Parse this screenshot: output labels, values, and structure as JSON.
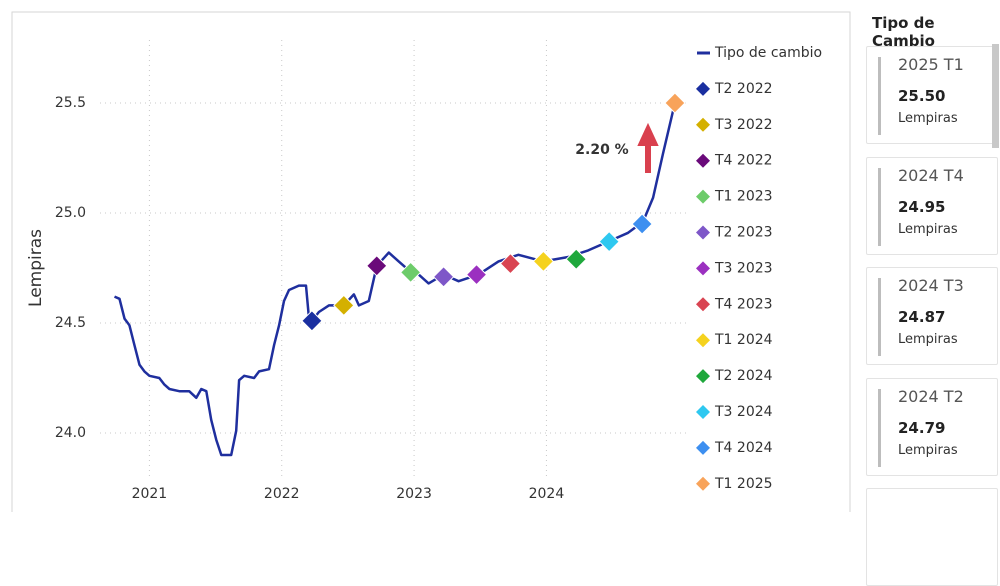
{
  "chart_data": {
    "type": "line",
    "ylabel": "Lempiras",
    "annotation": "2.20 %",
    "xlim": [
      2020.4,
      2025.1
    ],
    "xticks": [
      2021,
      2022,
      2023,
      2024
    ],
    "ylim": [
      23.7,
      25.8
    ],
    "yticks": [
      {
        "value": 24,
        "label": "24.0"
      },
      24.5,
      {
        "value": 25,
        "label": "25.0"
      },
      25.5
    ],
    "grid": true,
    "legend": "right",
    "series": [
      {
        "name": "Tipo de cambio",
        "color": "#1f2f9e",
        "kind": "line",
        "x": [
          2020.736,
          2020.774,
          2020.812,
          2020.849,
          2020.887,
          2020.925,
          2020.962,
          2021.0,
          2021.075,
          2021.113,
          2021.151,
          2021.226,
          2021.301,
          2021.354,
          2021.392,
          2021.43,
          2021.467,
          2021.505,
          2021.543,
          2021.618,
          2021.656,
          2021.678,
          2021.716,
          2021.791,
          2021.829,
          2021.904,
          2021.942,
          2021.98,
          2022.017,
          2022.055,
          2022.13,
          2022.183,
          2022.206,
          2022.228,
          2022.281,
          2022.356,
          2022.469,
          2022.545,
          2022.583,
          2022.658,
          2022.718,
          2022.809,
          2022.884,
          2022.959,
          2023.035,
          2023.11,
          2023.223,
          2023.336,
          2023.487,
          2023.638,
          2023.788,
          2023.977,
          2024.165,
          2024.316,
          2024.467,
          2024.617,
          2024.73,
          2024.806,
          2024.881,
          2024.971
        ],
        "values": [
          24.62,
          24.61,
          24.52,
          24.49,
          24.4,
          24.31,
          24.28,
          24.26,
          24.25,
          24.22,
          24.2,
          24.19,
          24.19,
          24.16,
          24.2,
          24.19,
          24.06,
          23.97,
          23.9,
          23.9,
          24.01,
          24.24,
          24.26,
          24.25,
          24.28,
          24.29,
          24.4,
          24.49,
          24.6,
          24.65,
          24.67,
          24.67,
          24.52,
          24.51,
          24.55,
          24.58,
          24.58,
          24.63,
          24.58,
          24.6,
          24.76,
          24.82,
          24.78,
          24.74,
          24.72,
          24.68,
          24.72,
          24.69,
          24.72,
          24.78,
          24.81,
          24.78,
          24.8,
          24.83,
          24.87,
          24.91,
          24.96,
          25.07,
          25.27,
          25.5
        ]
      },
      {
        "name": "T2 2022",
        "color": "#1a2fa0",
        "kind": "marker",
        "x": [
          2022.228
        ],
        "values": [
          24.51
        ]
      },
      {
        "name": "T3 2022",
        "color": "#d4b000",
        "kind": "marker",
        "x": [
          2022.469
        ],
        "values": [
          24.58
        ]
      },
      {
        "name": "T4 2022",
        "color": "#6a0a7a",
        "kind": "marker",
        "x": [
          2022.718
        ],
        "values": [
          24.76
        ]
      },
      {
        "name": "T1 2023",
        "color": "#6dcc6a",
        "kind": "marker",
        "x": [
          2022.974
        ],
        "values": [
          24.73
        ]
      },
      {
        "name": "T2 2023",
        "color": "#7e57c8",
        "kind": "marker",
        "x": [
          2023.223
        ],
        "values": [
          24.71
        ]
      },
      {
        "name": "T3 2023",
        "color": "#9b30c0",
        "kind": "marker",
        "x": [
          2023.472
        ],
        "values": [
          24.72
        ]
      },
      {
        "name": "T4 2023",
        "color": "#d94452",
        "kind": "marker",
        "x": [
          2023.728
        ],
        "values": [
          24.77
        ]
      },
      {
        "name": "T1 2024",
        "color": "#f5d21e",
        "kind": "marker",
        "x": [
          2023.977
        ],
        "values": [
          24.78
        ]
      },
      {
        "name": "T2 2024",
        "color": "#1fa83c",
        "kind": "marker",
        "x": [
          2024.225
        ],
        "values": [
          24.79
        ]
      },
      {
        "name": "T3 2024",
        "color": "#2ec8f0",
        "kind": "marker",
        "x": [
          2024.474
        ],
        "values": [
          24.87
        ]
      },
      {
        "name": "T4 2024",
        "color": "#3d8ff0",
        "kind": "marker",
        "x": [
          2024.723
        ],
        "values": [
          24.95
        ]
      },
      {
        "name": "T1 2025",
        "color": "#f8a35a",
        "kind": "marker",
        "x": [
          2024.971
        ],
        "values": [
          25.5
        ]
      }
    ]
  },
  "panel": {
    "title": "Tipo de Cambio",
    "cards": [
      {
        "period": "2025 T1",
        "value": "25.50",
        "unit": "Lempiras"
      },
      {
        "period": "2024 T4",
        "value": "24.95",
        "unit": "Lempiras"
      },
      {
        "period": "2024 T3",
        "value": "24.87",
        "unit": "Lempiras"
      },
      {
        "period": "2024 T2",
        "value": "24.79",
        "unit": "Lempiras"
      }
    ]
  }
}
